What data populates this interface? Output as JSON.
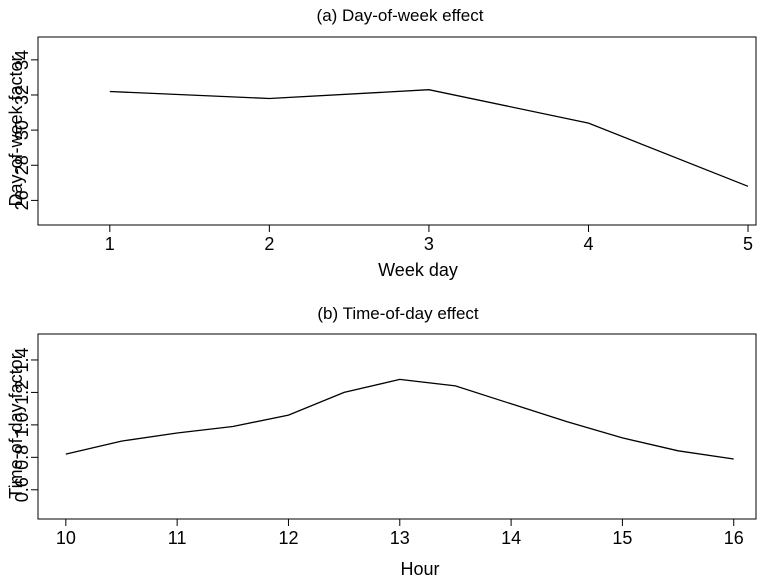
{
  "chart_data": [
    {
      "type": "line",
      "title": "(a) Day-of-week effect",
      "xlabel": "Week day",
      "ylabel": "Day-of-week factor",
      "x": [
        1,
        2,
        3,
        4,
        5
      ],
      "series": [
        {
          "values": [
            32.2,
            31.8,
            32.3,
            30.4,
            26.8
          ]
        }
      ],
      "xticks": [
        1,
        2,
        3,
        4,
        5
      ],
      "yticks": [
        26,
        28,
        30,
        32,
        34
      ],
      "ytick_labels": [
        "26",
        "28",
        "30",
        "32",
        "34"
      ],
      "xlim": [
        0.55,
        5.05
      ],
      "ylim": [
        24.6,
        35.3
      ],
      "grid": false
    },
    {
      "type": "line",
      "title": "(b) Time-of-day effect",
      "xlabel": "Hour",
      "ylabel": "Time-of-day  factor",
      "x": [
        10,
        10.5,
        11,
        11.5,
        12,
        12.5,
        13,
        13.5,
        14,
        14.5,
        15,
        15.5,
        16
      ],
      "series": [
        {
          "values": [
            0.82,
            0.9,
            0.95,
            0.99,
            1.06,
            1.2,
            1.28,
            1.24,
            1.13,
            1.02,
            0.92,
            0.84,
            0.79
          ]
        }
      ],
      "xticks": [
        10,
        11,
        12,
        13,
        14,
        15,
        16
      ],
      "yticks": [
        0.6,
        0.8,
        1.0,
        1.2,
        1.4
      ],
      "ytick_labels": [
        "0.6",
        "0.8",
        "1.0",
        "1.2",
        "1.4"
      ],
      "xlim": [
        9.75,
        16.2
      ],
      "ylim": [
        0.42,
        1.56
      ],
      "grid": false
    }
  ]
}
